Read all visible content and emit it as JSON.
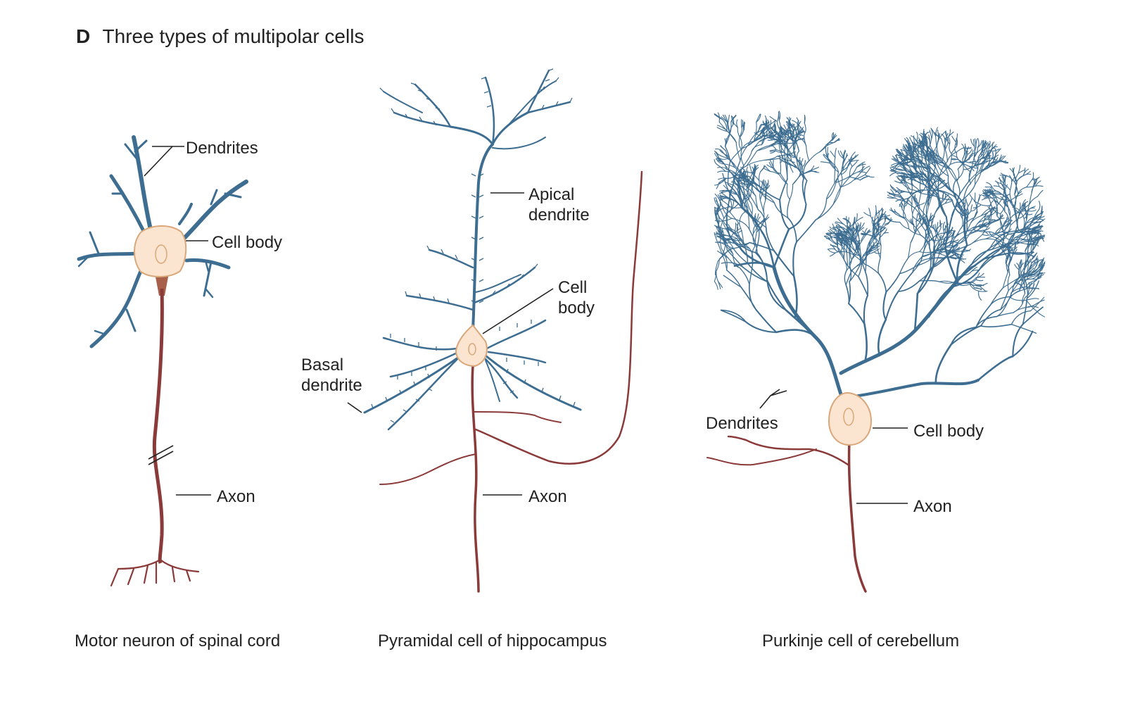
{
  "panel": {
    "letter": "D",
    "title": "Three types of multipolar cells"
  },
  "colors": {
    "dendrite": "#3d6d90",
    "axon": "#8b3a3a",
    "soma_fill": "#fbe5d0",
    "soma_stroke": "#d9a77a",
    "leader": "#222222"
  },
  "cells": [
    {
      "caption": "Motor neuron of spinal cord",
      "labels": {
        "dendrites": "Dendrites",
        "cell_body": "Cell body",
        "axon": "Axon"
      }
    },
    {
      "caption": "Pyramidal cell of hippocampus",
      "labels": {
        "apical": "Apical\ndendrite",
        "cell_body": "Cell\nbody",
        "basal": "Basal\ndendrite",
        "axon": "Axon"
      }
    },
    {
      "caption": "Purkinje cell of cerebellum",
      "labels": {
        "dendrites": "Dendrites",
        "cell_body": "Cell body",
        "axon": "Axon"
      }
    }
  ]
}
